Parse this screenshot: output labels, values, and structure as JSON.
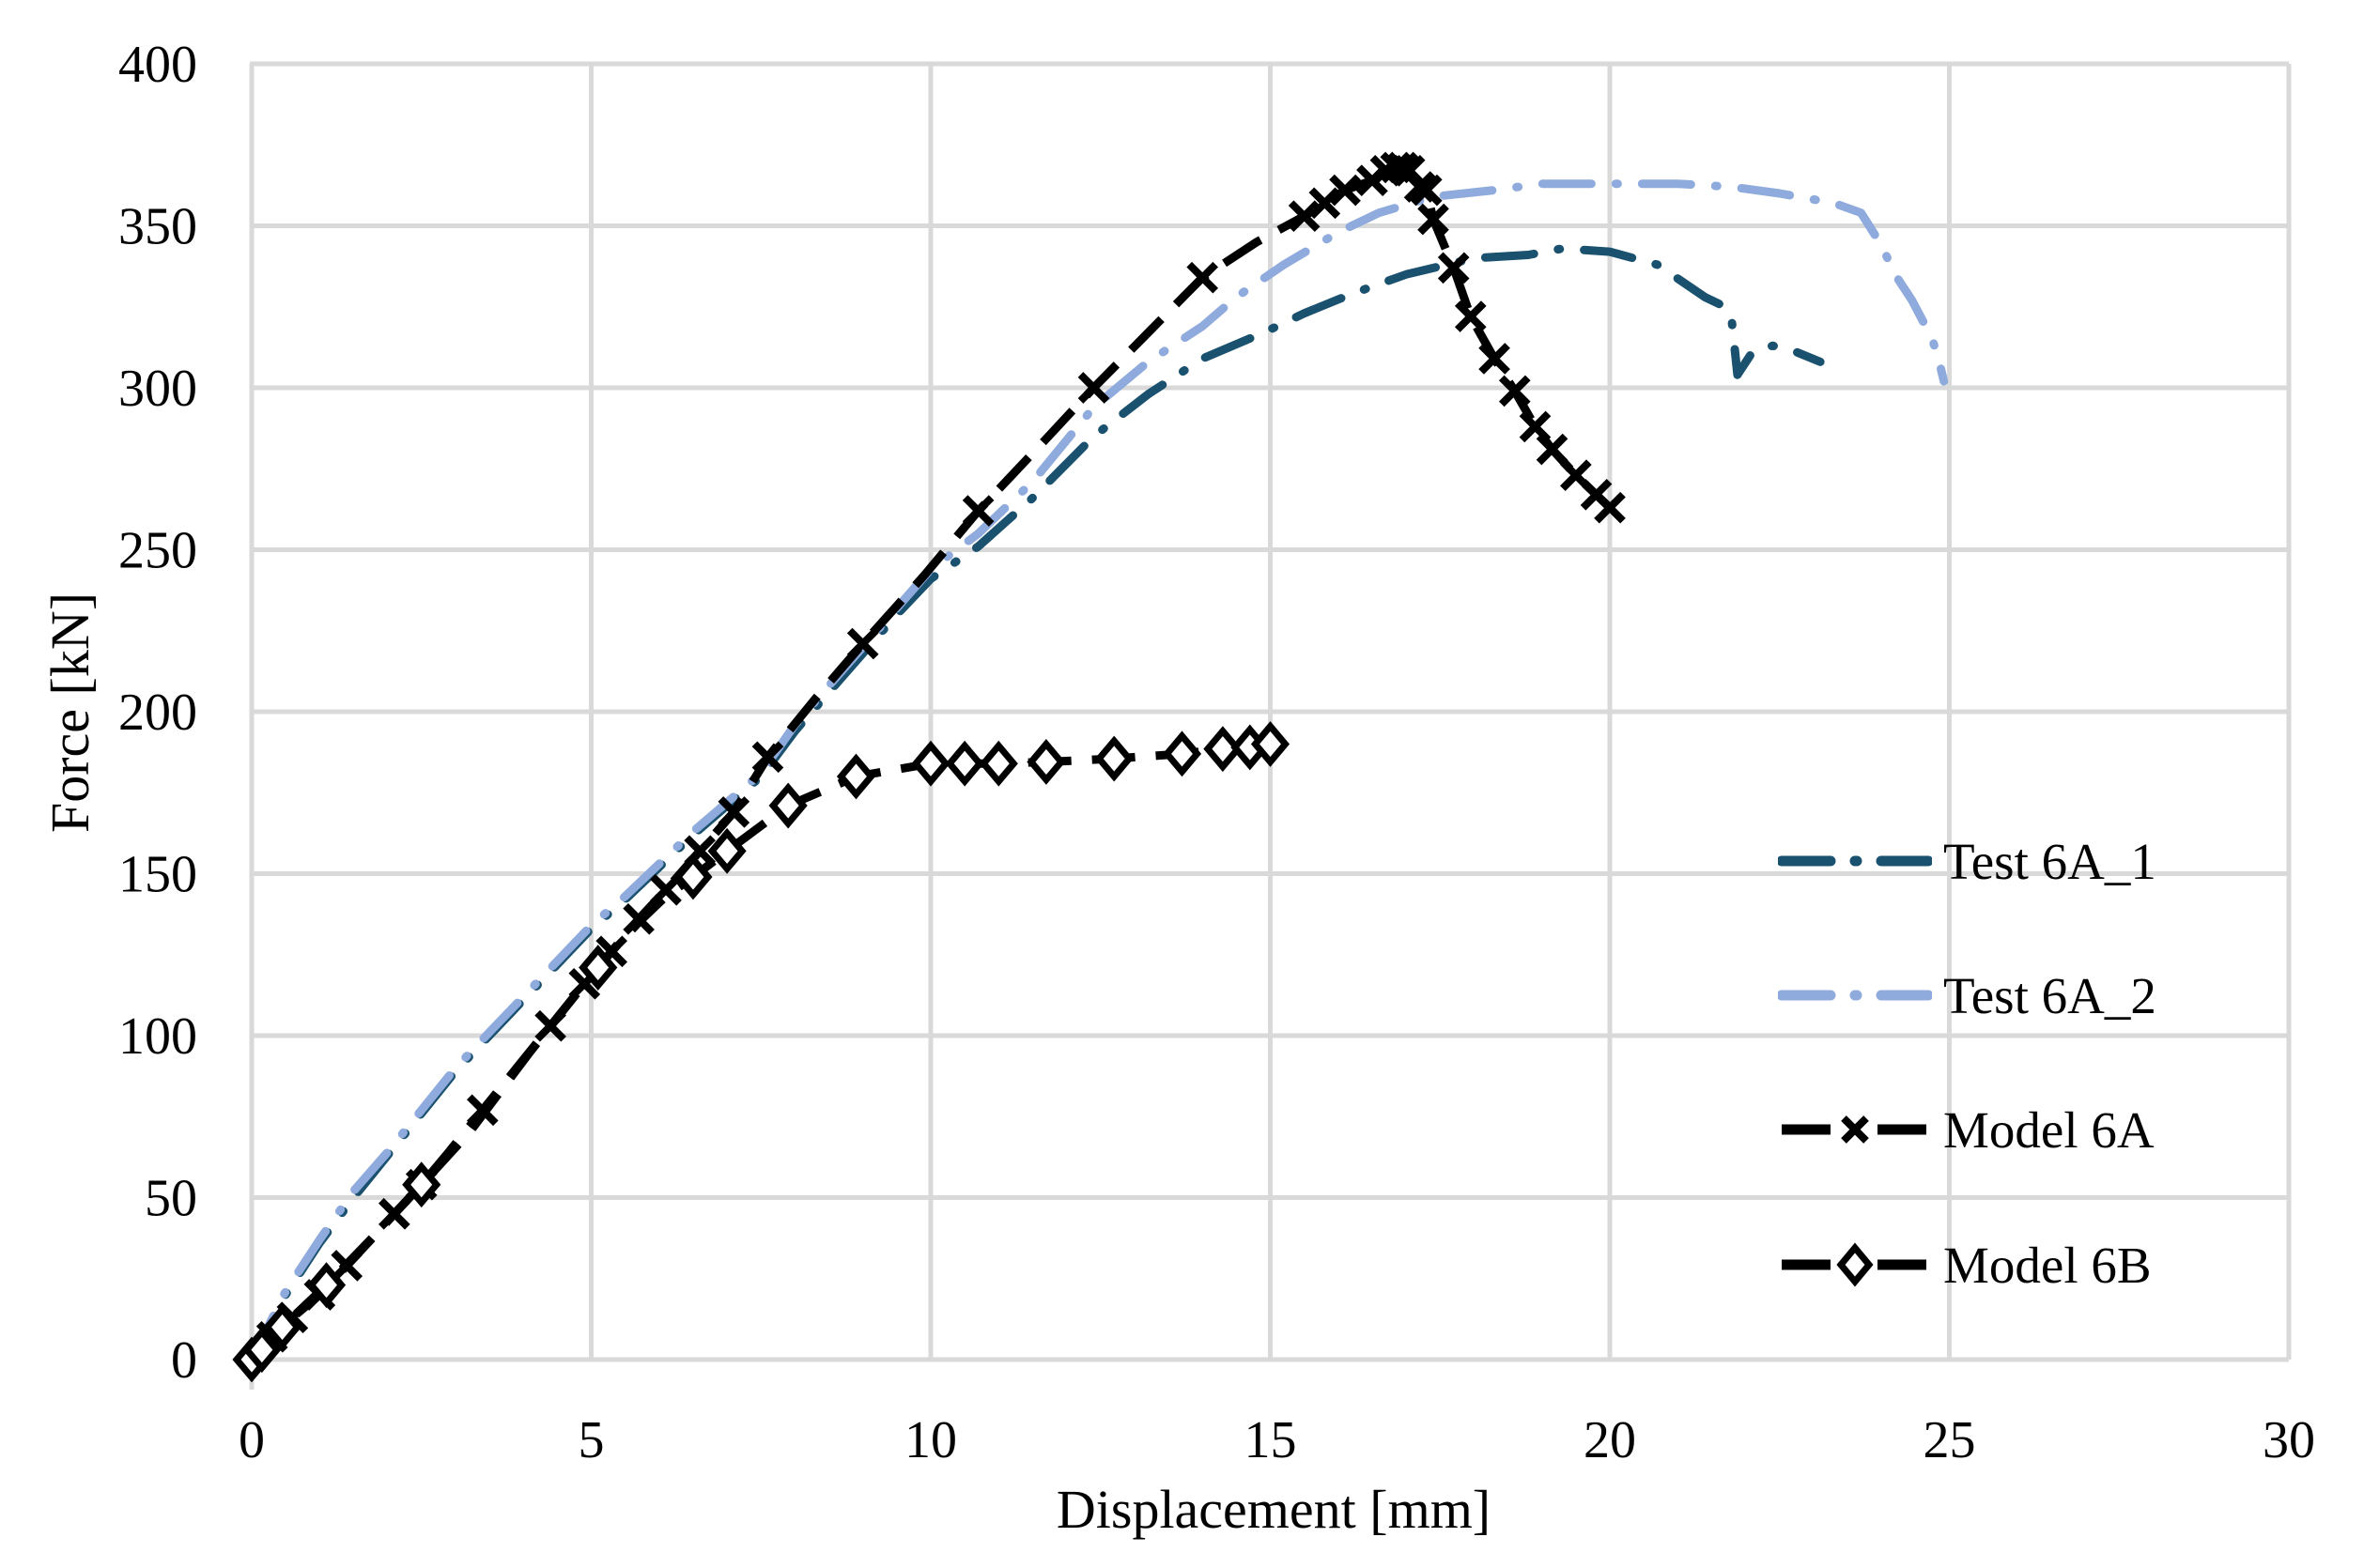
{
  "chart_data": {
    "type": "line",
    "title": "",
    "xlabel": "Displacement [mm]",
    "ylabel": "Force [kN]",
    "xlim": [
      0,
      30
    ],
    "ylim": [
      0,
      400
    ],
    "x_ticks": [
      0,
      5,
      10,
      15,
      20,
      25,
      30
    ],
    "y_ticks": [
      0,
      50,
      100,
      150,
      200,
      250,
      300,
      350,
      400
    ],
    "grid": true,
    "grid_color": "#D9D9D9",
    "legend_position": "right-inside",
    "series": [
      {
        "name": "Test 6A_1",
        "color": "#1A516F",
        "line_style": "dash-dot",
        "marker": null,
        "points": [
          [
            0,
            0
          ],
          [
            0.5,
            20
          ],
          [
            1,
            36
          ],
          [
            1.5,
            50
          ],
          [
            2,
            63
          ],
          [
            2.5,
            76
          ],
          [
            3,
            89
          ],
          [
            3.5,
            100
          ],
          [
            4,
            111
          ],
          [
            4.5,
            122
          ],
          [
            5,
            133
          ],
          [
            5.5,
            142
          ],
          [
            6,
            152
          ],
          [
            6.5,
            162
          ],
          [
            7,
            171
          ],
          [
            7.5,
            180
          ],
          [
            8,
            194
          ],
          [
            8.5,
            206
          ],
          [
            9,
            218
          ],
          [
            9.5,
            230
          ],
          [
            10,
            241
          ],
          [
            10.7,
            251
          ],
          [
            11.5,
            266
          ],
          [
            12.4,
            285
          ],
          [
            13.2,
            298
          ],
          [
            14,
            309
          ],
          [
            14.9,
            317
          ],
          [
            15.5,
            323
          ],
          [
            16.2,
            329
          ],
          [
            17,
            335
          ],
          [
            17.6,
            338
          ],
          [
            18,
            340
          ],
          [
            18.8,
            341
          ],
          [
            19.3,
            343
          ],
          [
            20,
            342
          ],
          [
            20.7,
            338
          ],
          [
            21.4,
            328
          ],
          [
            21.7,
            325
          ],
          [
            21.8,
            320
          ],
          [
            21.88,
            304
          ],
          [
            22.1,
            311
          ],
          [
            22.4,
            313
          ],
          [
            22.75,
            311
          ],
          [
            23.1,
            308
          ]
        ]
      },
      {
        "name": "Test 6A_2",
        "color": "#8FAADC",
        "line_style": "dash-dot",
        "marker": null,
        "points": [
          [
            0,
            0
          ],
          [
            0.5,
            21
          ],
          [
            1,
            37
          ],
          [
            1.5,
            52
          ],
          [
            2,
            64
          ],
          [
            2.5,
            77
          ],
          [
            3,
            90
          ],
          [
            3.5,
            101
          ],
          [
            4,
            112
          ],
          [
            4.5,
            123
          ],
          [
            5,
            134
          ],
          [
            5.5,
            143
          ],
          [
            6,
            153
          ],
          [
            6.5,
            163
          ],
          [
            7,
            172
          ],
          [
            7.5,
            181
          ],
          [
            8,
            196
          ],
          [
            8.5,
            208
          ],
          [
            9,
            220
          ],
          [
            9.5,
            232
          ],
          [
            10,
            244
          ],
          [
            10.7,
            255
          ],
          [
            11.5,
            271
          ],
          [
            12.4,
            294
          ],
          [
            13.2,
            308
          ],
          [
            14,
            319
          ],
          [
            14.5,
            328
          ],
          [
            15.2,
            338
          ],
          [
            16,
            348
          ],
          [
            16.6,
            354
          ],
          [
            17.4,
            359
          ],
          [
            18.3,
            361
          ],
          [
            19,
            363
          ],
          [
            20,
            363
          ],
          [
            21,
            363
          ],
          [
            21.8,
            362
          ],
          [
            22.5,
            360
          ],
          [
            23.3,
            357
          ],
          [
            23.7,
            354
          ],
          [
            24,
            344
          ],
          [
            24.2,
            335
          ],
          [
            24.45,
            327
          ],
          [
            24.6,
            321
          ],
          [
            24.75,
            315
          ],
          [
            24.85,
            308
          ],
          [
            24.92,
            302
          ]
        ]
      },
      {
        "name": "Model 6A",
        "color": "#000000",
        "line_style": "dash",
        "marker": "x",
        "points": [
          [
            0,
            0
          ],
          [
            0.3,
            7
          ],
          [
            0.6,
            13
          ],
          [
            1,
            20
          ],
          [
            1.4,
            29
          ],
          [
            1.8,
            38
          ],
          [
            2.1,
            45
          ],
          [
            2.5,
            54
          ],
          [
            2.9,
            64
          ],
          [
            3.4,
            77
          ],
          [
            3.9,
            90
          ],
          [
            4.4,
            103
          ],
          [
            4.9,
            116
          ],
          [
            5.3,
            126
          ],
          [
            5.7,
            136
          ],
          [
            6.1,
            145
          ],
          [
            6.6,
            157
          ],
          [
            7.1,
            169
          ],
          [
            7.6,
            186
          ],
          [
            8.3,
            204
          ],
          [
            9,
            221
          ],
          [
            9.9,
            242
          ],
          [
            10.7,
            262
          ],
          [
            11.6,
            282
          ],
          [
            12.4,
            300
          ],
          [
            13.2,
            317
          ],
          [
            14,
            334
          ],
          [
            14.8,
            345
          ],
          [
            15.5,
            353
          ],
          [
            15.8,
            357
          ],
          [
            16.1,
            361
          ],
          [
            16.5,
            364
          ],
          [
            16.7,
            367
          ],
          [
            16.85,
            368
          ],
          [
            17,
            367
          ],
          [
            17.1,
            365
          ],
          [
            17.2,
            362
          ],
          [
            17.3,
            361
          ],
          [
            17.4,
            352
          ],
          [
            17.7,
            337
          ],
          [
            17.95,
            322
          ],
          [
            18.3,
            309
          ],
          [
            18.6,
            299
          ],
          [
            18.9,
            288
          ],
          [
            19.15,
            281
          ],
          [
            19.5,
            273
          ],
          [
            19.8,
            267
          ],
          [
            20,
            263
          ]
        ],
        "marker_points": [
          [
            0.3,
            7
          ],
          [
            0.6,
            13
          ],
          [
            1,
            20
          ],
          [
            1.4,
            29
          ],
          [
            2.1,
            45
          ],
          [
            2.5,
            54
          ],
          [
            3.4,
            77
          ],
          [
            4.4,
            103
          ],
          [
            4.9,
            116
          ],
          [
            5.3,
            126
          ],
          [
            5.7,
            136
          ],
          [
            6.1,
            145
          ],
          [
            6.6,
            157
          ],
          [
            7.1,
            169
          ],
          [
            7.6,
            186
          ],
          [
            9,
            221
          ],
          [
            10.7,
            262
          ],
          [
            12.4,
            300
          ],
          [
            14,
            334
          ],
          [
            15.5,
            353
          ],
          [
            15.8,
            357
          ],
          [
            16.1,
            361
          ],
          [
            16.5,
            364
          ],
          [
            16.7,
            367
          ],
          [
            16.85,
            368
          ],
          [
            16.95,
            368
          ],
          [
            17.05,
            367
          ],
          [
            17.2,
            362
          ],
          [
            17.3,
            361
          ],
          [
            17.4,
            352
          ],
          [
            17.7,
            337
          ],
          [
            17.95,
            322
          ],
          [
            18.3,
            309
          ],
          [
            18.6,
            299
          ],
          [
            18.9,
            288
          ],
          [
            19.15,
            281
          ],
          [
            19.5,
            273
          ],
          [
            19.8,
            267
          ],
          [
            20,
            263
          ]
        ]
      },
      {
        "name": "Model 6B",
        "color": "#000000",
        "line_style": "dash",
        "marker": "diamond",
        "points": [
          [
            0,
            0
          ],
          [
            0.2,
            4
          ],
          [
            0.5,
            11
          ],
          [
            1.1,
            23
          ],
          [
            1.75,
            37
          ],
          [
            2.5,
            54
          ],
          [
            3.2,
            70
          ],
          [
            4.1,
            95
          ],
          [
            4.9,
            116
          ],
          [
            5.3,
            126
          ],
          [
            5.7,
            135
          ],
          [
            6.1,
            143
          ],
          [
            6.5,
            149
          ],
          [
            7,
            157
          ],
          [
            7.9,
            171
          ],
          [
            8.9,
            180
          ],
          [
            10,
            184
          ],
          [
            10.5,
            184
          ],
          [
            11,
            184
          ],
          [
            11.7,
            184.5
          ],
          [
            12.7,
            185.5
          ],
          [
            13.7,
            187
          ],
          [
            14.3,
            188.5
          ],
          [
            15,
            190
          ]
        ],
        "marker_points": [
          [
            0,
            0
          ],
          [
            0.15,
            3
          ],
          [
            0.45,
            10
          ],
          [
            1.1,
            23
          ],
          [
            2.5,
            54
          ],
          [
            5.1,
            121
          ],
          [
            6.5,
            149
          ],
          [
            7,
            157
          ],
          [
            7.9,
            171
          ],
          [
            8.9,
            180
          ],
          [
            10,
            184
          ],
          [
            10.5,
            184
          ],
          [
            11,
            184
          ],
          [
            11.7,
            184.5
          ],
          [
            12.7,
            185.5
          ],
          [
            13.7,
            187
          ],
          [
            14.3,
            188.5
          ],
          [
            14.7,
            189
          ],
          [
            15,
            190
          ]
        ]
      }
    ]
  }
}
